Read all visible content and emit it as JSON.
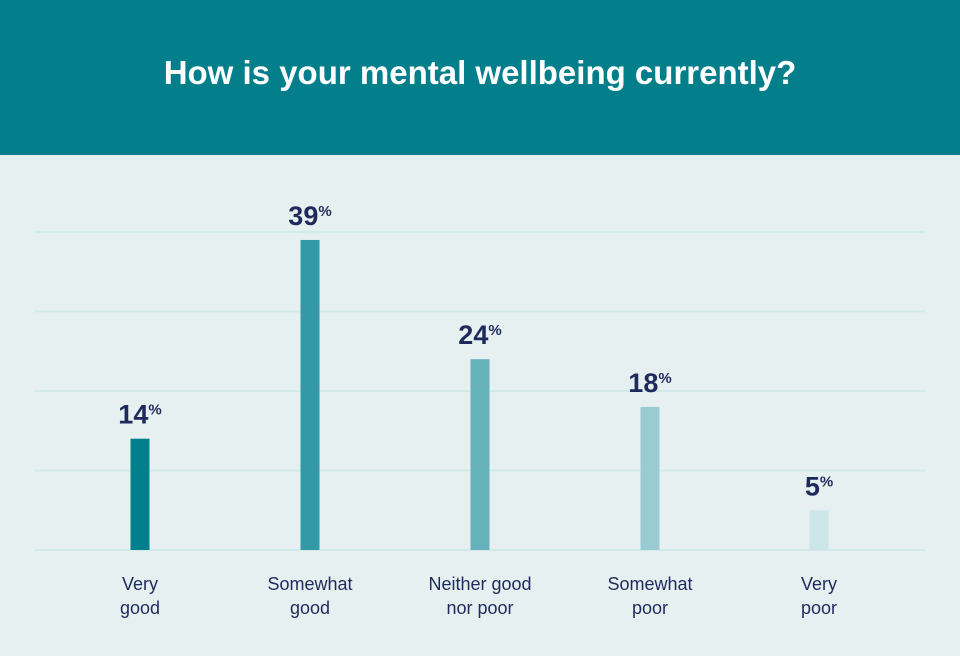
{
  "chart_data": {
    "type": "bar",
    "title": "How is your mental wellbeing currently?",
    "categories": [
      "Very good",
      "Somewhat good",
      "Neither good nor poor",
      "Somewhat poor",
      "Very poor"
    ],
    "category_lines": [
      [
        "Very",
        "good"
      ],
      [
        "Somewhat",
        "good"
      ],
      [
        "Neither good",
        "nor poor"
      ],
      [
        "Somewhat",
        "poor"
      ],
      [
        "Very",
        "poor"
      ]
    ],
    "values": [
      14,
      39,
      24,
      18,
      5
    ],
    "value_suffix": "%",
    "colors": [
      "#007f8c",
      "#3399a6",
      "#66b2bb",
      "#99ccd2",
      "#cce5e8"
    ],
    "xlabel": "",
    "ylabel": "",
    "ylim": [
      0,
      40
    ],
    "gridlines": [
      0,
      10,
      20,
      30,
      40
    ],
    "grid": true,
    "legend": "none"
  },
  "colors": {
    "header": "#037f8c",
    "background": "#e6f0f0",
    "text": "#1f2a5c",
    "grid": "#d3eaea"
  }
}
